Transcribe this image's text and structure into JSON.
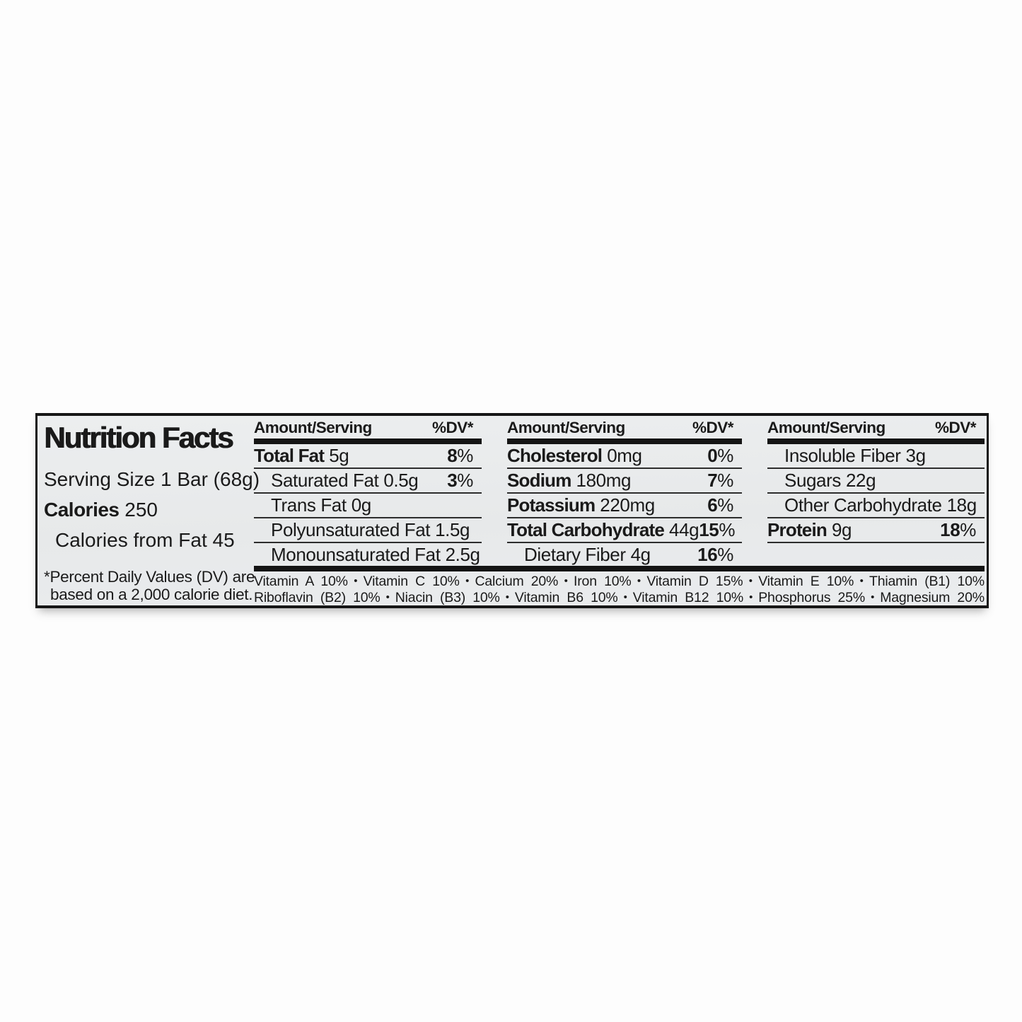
{
  "label": {
    "title": "Nutrition Facts",
    "serving_size": "Serving Size 1 Bar (68g)",
    "calories_label": "Calories",
    "calories_value": "250",
    "calories_from_fat": "Calories from Fat 45",
    "footnote_line1": "*Percent Daily Values (DV) are",
    "footnote_line2": "based on a 2,000 calorie diet."
  },
  "table": {
    "header": {
      "amount": "Amount/Serving",
      "dv": "%DV*"
    },
    "columns": [
      {
        "rows": [
          {
            "name": "Total Fat",
            "value": "5g",
            "dv_num": "8",
            "dv_pct": "%"
          },
          {
            "name": "Saturated Fat",
            "value": "0.5g",
            "dv_num": "3",
            "dv_pct": "%"
          },
          {
            "name": "Trans Fat",
            "value": "0g",
            "dv_num": "",
            "dv_pct": ""
          },
          {
            "name": "Polyunsaturated Fat",
            "value": "1.5g",
            "dv_num": "",
            "dv_pct": ""
          },
          {
            "name": "Monounsaturated Fat",
            "value": "2.5g",
            "dv_num": "",
            "dv_pct": ""
          }
        ]
      },
      {
        "rows": [
          {
            "name": "Cholesterol",
            "value": "0mg",
            "dv_num": "0",
            "dv_pct": "%"
          },
          {
            "name": "Sodium",
            "value": "180mg",
            "dv_num": "7",
            "dv_pct": "%"
          },
          {
            "name": "Potassium",
            "value": "220mg",
            "dv_num": "6",
            "dv_pct": "%"
          },
          {
            "name": "Total Carbohydrate",
            "value": "44g",
            "dv_num": "15",
            "dv_pct": "%"
          },
          {
            "name": "Dietary Fiber",
            "value": "4g",
            "dv_num": "16",
            "dv_pct": "%"
          }
        ]
      },
      {
        "rows": [
          {
            "name": "Insoluble Fiber",
            "value": "3g",
            "dv_num": "",
            "dv_pct": ""
          },
          {
            "name": "Sugars",
            "value": "22g",
            "dv_num": "",
            "dv_pct": ""
          },
          {
            "name": "Other Carbohydrate",
            "value": "18g",
            "dv_num": "",
            "dv_pct": ""
          },
          {
            "name": "Protein",
            "value": "9g",
            "dv_num": "18",
            "dv_pct": "%"
          },
          {
            "name": "",
            "value": "",
            "dv_num": "",
            "dv_pct": ""
          }
        ]
      }
    ]
  },
  "vitamins": {
    "bullet": "•",
    "line1": [
      "Vitamin A 10%",
      "Vitamin C 10%",
      "Calcium 20%",
      "Iron 10%",
      "Vitamin D 15%",
      "Vitamin E 10%",
      "Thiamin (B1) 10%"
    ],
    "line2": [
      "Riboflavin (B2) 10%",
      "Niacin (B3) 10%",
      "Vitamin B6 10%",
      "Vitamin B12 10%",
      "Phosphorus 25%",
      "Magnesium 20%"
    ]
  },
  "colors": {
    "label_bg": "#e8eaeb",
    "border": "#161616",
    "text": "#1a1a1a",
    "page_bg": "#fdfdfd"
  }
}
